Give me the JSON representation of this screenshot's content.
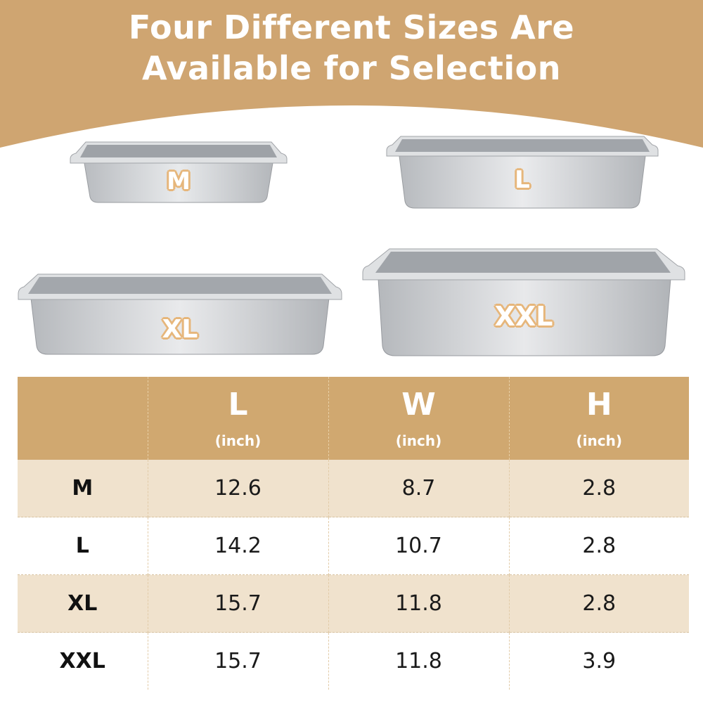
{
  "headline": {
    "line1": "Four Different Sizes Are",
    "line2": "Available for Selection"
  },
  "colors": {
    "banner": "#cfa571",
    "header_row": "#d0a870",
    "tan_row": "#f0e2cd",
    "label_outline": "#e6b67b"
  },
  "pans": [
    {
      "label": "M"
    },
    {
      "label": "L"
    },
    {
      "label": "XL"
    },
    {
      "label": "XXL"
    }
  ],
  "table": {
    "columns": [
      {
        "letter": "L",
        "unit": "(inch)"
      },
      {
        "letter": "W",
        "unit": "(inch)"
      },
      {
        "letter": "H",
        "unit": "(inch)"
      }
    ],
    "rows": [
      {
        "size": "M",
        "values": [
          "12.6",
          "8.7",
          "2.8"
        ]
      },
      {
        "size": "L",
        "values": [
          "14.2",
          "10.7",
          "2.8"
        ]
      },
      {
        "size": "XL",
        "values": [
          "15.7",
          "11.8",
          "2.8"
        ]
      },
      {
        "size": "XXL",
        "values": [
          "15.7",
          "11.8",
          "3.9"
        ]
      }
    ]
  }
}
